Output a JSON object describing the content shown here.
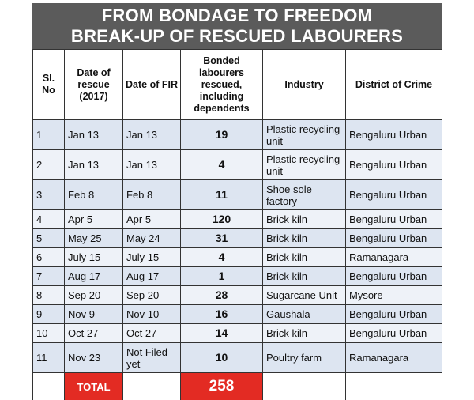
{
  "title": {
    "line1": "FROM BONDAGE TO FREEDOM",
    "line2": "BREAK-UP OF RESCUED LABOURERS"
  },
  "headers": {
    "sl": "Sl. No",
    "rescue": "Date of rescue (2017)",
    "fir": "Date of FIR",
    "bonded": "Bonded labourers rescued, including dependents",
    "industry": "Industry",
    "district": "District of Crime"
  },
  "rows": [
    {
      "sl": "1",
      "rescue": "Jan 13",
      "fir": "Jan 13",
      "count": "19",
      "industry": "Plastic recycling unit",
      "district": "Bengaluru Urban"
    },
    {
      "sl": "2",
      "rescue": "Jan 13",
      "fir": "Jan 13",
      "count": "4",
      "industry": "Plastic recycling unit",
      "district": "Bengaluru Urban"
    },
    {
      "sl": "3",
      "rescue": "Feb 8",
      "fir": "Feb 8",
      "count": "11",
      "industry": "Shoe sole factory",
      "district": "Bengaluru Urban"
    },
    {
      "sl": "4",
      "rescue": "Apr 5",
      "fir": "Apr 5",
      "count": "120",
      "industry": "Brick kiln",
      "district": "Bengaluru Urban"
    },
    {
      "sl": "5",
      "rescue": "May 25",
      "fir": "May 24",
      "count": "31",
      "industry": "Brick kiln",
      "district": "Bengaluru Urban"
    },
    {
      "sl": "6",
      "rescue": "July 15",
      "fir": "July 15",
      "count": "4",
      "industry": "Brick kiln",
      "district": "Ramanagara"
    },
    {
      "sl": "7",
      "rescue": "Aug 17",
      "fir": "Aug 17",
      "count": "1",
      "industry": "Brick kiln",
      "district": "Bengaluru Urban"
    },
    {
      "sl": "8",
      "rescue": "Sep 20",
      "fir": "Sep 20",
      "count": "28",
      "industry": "Sugarcane Unit",
      "district": "Mysore"
    },
    {
      "sl": "9",
      "rescue": "Nov 9",
      "fir": "Nov 10",
      "count": "16",
      "industry": "Gaushala",
      "district": "Bengaluru Urban"
    },
    {
      "sl": "10",
      "rescue": "Oct 27",
      "fir": "Oct 27",
      "count": "14",
      "industry": "Brick kiln",
      "district": "Bengaluru Urban"
    },
    {
      "sl": "11",
      "rescue": "Nov 23",
      "fir": "Not Filed yet",
      "count": "10",
      "industry": "Poultry farm",
      "district": "Ramanagara"
    }
  ],
  "total": {
    "label": "TOTAL",
    "value": "258"
  },
  "colors": {
    "title_bg": "#5b5b5b",
    "row_odd": "#dde5f1",
    "row_even": "#eef2f8",
    "total_red": "#e32b23"
  }
}
